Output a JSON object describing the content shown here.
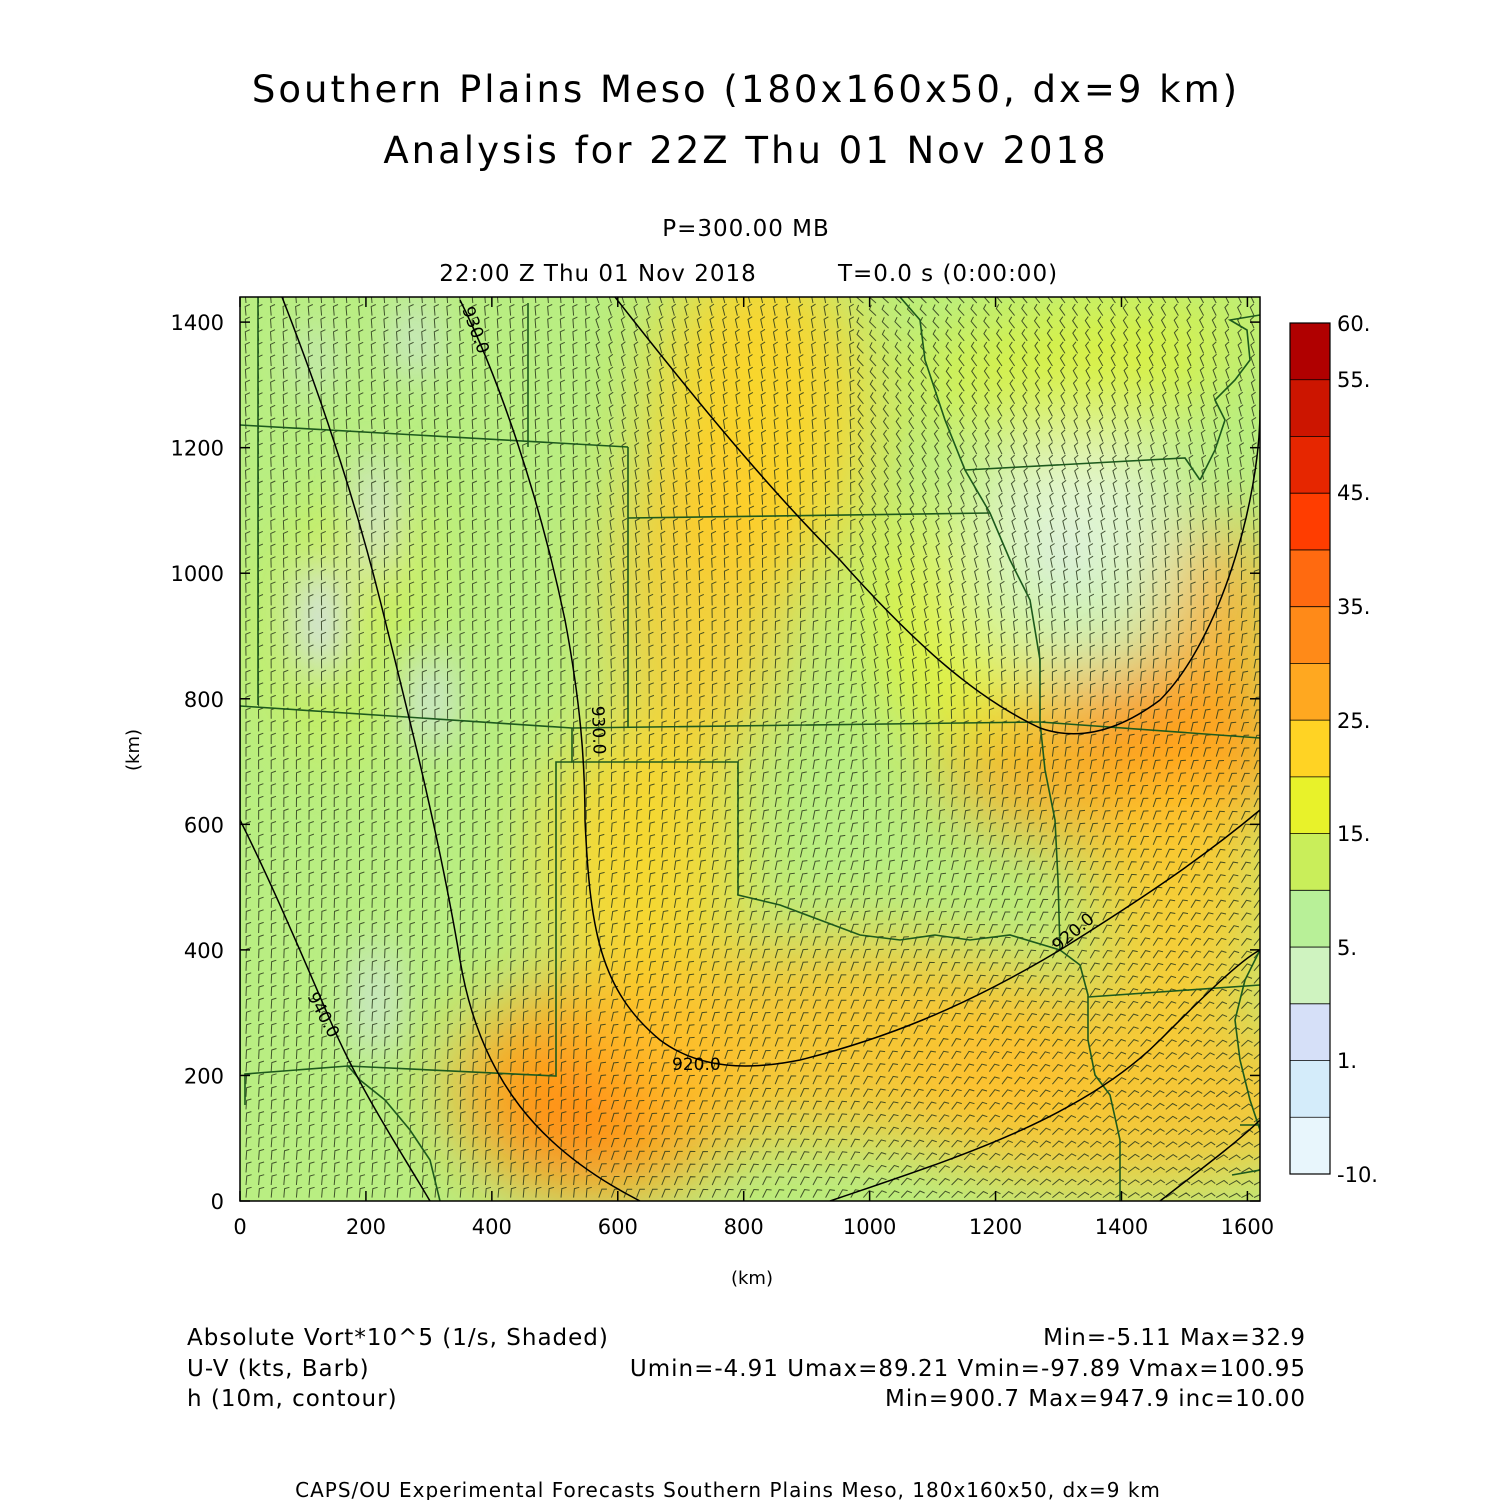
{
  "header": {
    "title_line1": "Southern Plains Meso (180x160x50, dx=9 km)",
    "title_line2": "Analysis for 22Z Thu 01 Nov 2018",
    "level": "P=300.00 MB",
    "valid_time": "22:00 Z Thu 01 Nov 2018",
    "forecast_time": "T=0.0 s (0:00:00)"
  },
  "chart_data": {
    "type": "heatmap",
    "xlabel": "(km)",
    "ylabel": "(km)",
    "xlim": [
      0,
      1620
    ],
    "ylim": [
      0,
      1440
    ],
    "x_ticks": [
      "0",
      "200",
      "400",
      "600",
      "800",
      "1000",
      "1200",
      "1400",
      "1600"
    ],
    "y_ticks": [
      "0",
      "200",
      "400",
      "600",
      "800",
      "1000",
      "1200",
      "1400"
    ],
    "colorbar": {
      "labels": [
        "60.",
        "55.",
        "45.",
        "35.",
        "25.",
        "15.",
        "5.",
        "1.",
        "-10."
      ],
      "colors": [
        "#b00000",
        "#cc1500",
        "#e62600",
        "#ff3d00",
        "#ff6a10",
        "#ff8a18",
        "#ffa820",
        "#ffd324",
        "#e8f22a",
        "#c9ee5a",
        "#b8f098",
        "#cff3c0",
        "#d6e0f8",
        "#d4ecfa",
        "#e8f6fc"
      ]
    },
    "contours": [
      {
        "label": "920.0",
        "x": 730,
        "y": 210
      },
      {
        "label": "930.0",
        "x": 560,
        "y": 800
      },
      {
        "label": "940.0",
        "x": 140,
        "y": 310
      },
      {
        "label": "930.0",
        "x": 370,
        "y": 1390
      },
      {
        "label": "920.0",
        "x": 1360,
        "y": 400
      }
    ],
    "vorticity_field_units": "1/s * 10^5",
    "shaded_min": -5.11,
    "shaded_max": 32.9
  },
  "legend": {
    "field1_name": "Absolute Vort*10^5 (1/s, Shaded)",
    "field1_stats": "Min=-5.11 Max=32.9",
    "field2_name": "U-V (kts, Barb)",
    "field2_stats": "Umin=-4.91 Umax=89.21 Vmin=-97.89 Vmax=100.95",
    "field3_name": "h (10m, contour)",
    "field3_stats": "Min=900.7 Max=947.9 inc=10.00"
  },
  "footer": {
    "credit": "CAPS/OU Experimental Forecasts  Southern Plains Meso, 180x160x50, dx=9 km"
  },
  "colors": {
    "boundary": "#1d5a1d",
    "barb": "#2c3a1c",
    "contour": "#000000"
  }
}
